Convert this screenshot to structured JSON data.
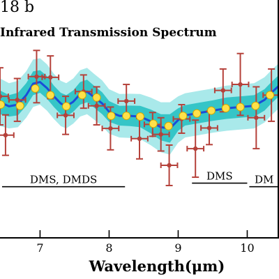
{
  "chart_data": {
    "type": "scatter",
    "title": "18 b",
    "subtitle": "Infrared Transmission Spectrum",
    "xlabel": "Wavelength(μm)",
    "ylabel": "",
    "xlim": [
      6.42,
      10.46
    ],
    "ylim": [
      0.0,
      1.0
    ],
    "xticks": [
      7,
      8,
      9,
      10
    ],
    "xtick_labels": [
      "7",
      "8",
      "9",
      "10"
    ],
    "grid": false,
    "legend": "none",
    "colors": {
      "observed": "#b5413a",
      "model": "#ffe14a",
      "model_edge": "#d0a800",
      "median_line": "#1a4dd8",
      "band_inner": "#35c5c7",
      "band_outer": "#a9e9ea"
    },
    "observed": [
      {
        "x": 6.42,
        "xerr": 0.12,
        "y": 0.595,
        "yerr": 0.12
      },
      {
        "x": 6.5,
        "xerr": 0.12,
        "y": 0.432,
        "yerr": 0.085
      },
      {
        "x": 6.67,
        "xerr": 0.12,
        "y": 0.58,
        "yerr": 0.09
      },
      {
        "x": 6.95,
        "xerr": 0.12,
        "y": 0.678,
        "yerr": 0.11
      },
      {
        "x": 7.15,
        "xerr": 0.12,
        "y": 0.675,
        "yerr": 0.09
      },
      {
        "x": 7.37,
        "xerr": 0.12,
        "y": 0.515,
        "yerr": 0.08
      },
      {
        "x": 7.63,
        "xerr": 0.12,
        "y": 0.615,
        "yerr": 0.07
      },
      {
        "x": 7.82,
        "xerr": 0.12,
        "y": 0.555,
        "yerr": 0.08
      },
      {
        "x": 8.02,
        "xerr": 0.12,
        "y": 0.46,
        "yerr": 0.09
      },
      {
        "x": 8.25,
        "xerr": 0.12,
        "y": 0.575,
        "yerr": 0.07
      },
      {
        "x": 8.44,
        "xerr": 0.12,
        "y": 0.417,
        "yerr": 0.085
      },
      {
        "x": 8.63,
        "xerr": 0.12,
        "y": 0.477,
        "yerr": 0.05
      },
      {
        "x": 8.75,
        "xerr": 0.12,
        "y": 0.435,
        "yerr": 0.07
      },
      {
        "x": 8.87,
        "xerr": 0.12,
        "y": 0.305,
        "yerr": 0.085
      },
      {
        "x": 9.05,
        "xerr": 0.12,
        "y": 0.5,
        "yerr": 0.06
      },
      {
        "x": 9.25,
        "xerr": 0.12,
        "y": 0.375,
        "yerr": 0.12
      },
      {
        "x": 9.45,
        "xerr": 0.12,
        "y": 0.462,
        "yerr": 0.07
      },
      {
        "x": 9.65,
        "xerr": 0.12,
        "y": 0.62,
        "yerr": 0.09
      },
      {
        "x": 9.9,
        "xerr": 0.12,
        "y": 0.645,
        "yerr": 0.13
      },
      {
        "x": 10.13,
        "xerr": 0.12,
        "y": 0.505,
        "yerr": 0.13
      },
      {
        "x": 10.35,
        "xerr": 0.12,
        "y": 0.6,
        "yerr": 0.11
      }
    ],
    "model": [
      {
        "x": 6.43,
        "y": 0.56
      },
      {
        "x": 6.71,
        "y": 0.555
      },
      {
        "x": 6.93,
        "y": 0.628
      },
      {
        "x": 7.15,
        "y": 0.6
      },
      {
        "x": 7.38,
        "y": 0.553
      },
      {
        "x": 7.61,
        "y": 0.6
      },
      {
        "x": 7.82,
        "y": 0.59
      },
      {
        "x": 8.03,
        "y": 0.513
      },
      {
        "x": 8.25,
        "y": 0.513
      },
      {
        "x": 8.45,
        "y": 0.51
      },
      {
        "x": 8.64,
        "y": 0.48
      },
      {
        "x": 8.86,
        "y": 0.47
      },
      {
        "x": 9.07,
        "y": 0.513
      },
      {
        "x": 9.27,
        "y": 0.523
      },
      {
        "x": 9.48,
        "y": 0.535
      },
      {
        "x": 9.69,
        "y": 0.545
      },
      {
        "x": 9.9,
        "y": 0.55
      },
      {
        "x": 10.12,
        "y": 0.555
      },
      {
        "x": 10.33,
        "y": 0.6
      }
    ],
    "median_line": [
      [
        6.42,
        0.57
      ],
      [
        6.55,
        0.553
      ],
      [
        6.68,
        0.56
      ],
      [
        6.8,
        0.6
      ],
      [
        6.9,
        0.648
      ],
      [
        7.0,
        0.655
      ],
      [
        7.1,
        0.63
      ],
      [
        7.2,
        0.595
      ],
      [
        7.3,
        0.565
      ],
      [
        7.38,
        0.553
      ],
      [
        7.48,
        0.572
      ],
      [
        7.58,
        0.605
      ],
      [
        7.68,
        0.615
      ],
      [
        7.78,
        0.592
      ],
      [
        7.9,
        0.565
      ],
      [
        8.0,
        0.53
      ],
      [
        8.15,
        0.513
      ],
      [
        8.3,
        0.513
      ],
      [
        8.45,
        0.51
      ],
      [
        8.6,
        0.49
      ],
      [
        8.75,
        0.465
      ],
      [
        8.88,
        0.46
      ],
      [
        9.0,
        0.495
      ],
      [
        9.1,
        0.515
      ],
      [
        9.3,
        0.525
      ],
      [
        9.5,
        0.535
      ],
      [
        9.7,
        0.545
      ],
      [
        9.9,
        0.55
      ],
      [
        10.1,
        0.555
      ],
      [
        10.25,
        0.58
      ],
      [
        10.35,
        0.61
      ],
      [
        10.46,
        0.64
      ]
    ],
    "band_inner": [
      [
        6.42,
        0.52,
        0.62
      ],
      [
        6.55,
        0.51,
        0.6
      ],
      [
        6.68,
        0.515,
        0.61
      ],
      [
        6.8,
        0.555,
        0.65
      ],
      [
        6.9,
        0.6,
        0.7
      ],
      [
        7.0,
        0.61,
        0.705
      ],
      [
        7.1,
        0.585,
        0.68
      ],
      [
        7.2,
        0.55,
        0.64
      ],
      [
        7.3,
        0.52,
        0.61
      ],
      [
        7.38,
        0.51,
        0.6
      ],
      [
        7.48,
        0.53,
        0.62
      ],
      [
        7.58,
        0.56,
        0.655
      ],
      [
        7.68,
        0.57,
        0.665
      ],
      [
        7.78,
        0.548,
        0.64
      ],
      [
        7.9,
        0.52,
        0.612
      ],
      [
        8.0,
        0.488,
        0.575
      ],
      [
        8.15,
        0.472,
        0.555
      ],
      [
        8.3,
        0.47,
        0.556
      ],
      [
        8.45,
        0.465,
        0.555
      ],
      [
        8.6,
        0.44,
        0.54
      ],
      [
        8.75,
        0.41,
        0.52
      ],
      [
        8.88,
        0.4,
        0.52
      ],
      [
        9.0,
        0.45,
        0.545
      ],
      [
        9.1,
        0.472,
        0.558
      ],
      [
        9.3,
        0.482,
        0.568
      ],
      [
        9.5,
        0.492,
        0.578
      ],
      [
        9.7,
        0.5,
        0.59
      ],
      [
        9.9,
        0.505,
        0.595
      ],
      [
        10.1,
        0.51,
        0.6
      ],
      [
        10.25,
        0.535,
        0.625
      ],
      [
        10.35,
        0.565,
        0.655
      ],
      [
        10.46,
        0.595,
        0.685
      ]
    ],
    "band_outer": [
      [
        6.42,
        0.47,
        0.67
      ],
      [
        6.55,
        0.46,
        0.65
      ],
      [
        6.68,
        0.465,
        0.66
      ],
      [
        6.8,
        0.505,
        0.7
      ],
      [
        6.9,
        0.55,
        0.75
      ],
      [
        7.0,
        0.56,
        0.755
      ],
      [
        7.1,
        0.535,
        0.73
      ],
      [
        7.2,
        0.5,
        0.69
      ],
      [
        7.3,
        0.47,
        0.66
      ],
      [
        7.38,
        0.46,
        0.65
      ],
      [
        7.48,
        0.48,
        0.67
      ],
      [
        7.58,
        0.51,
        0.705
      ],
      [
        7.68,
        0.52,
        0.715
      ],
      [
        7.78,
        0.498,
        0.69
      ],
      [
        7.9,
        0.47,
        0.662
      ],
      [
        8.0,
        0.438,
        0.625
      ],
      [
        8.15,
        0.422,
        0.605
      ],
      [
        8.3,
        0.42,
        0.606
      ],
      [
        8.45,
        0.415,
        0.605
      ],
      [
        8.6,
        0.39,
        0.59
      ],
      [
        8.75,
        0.36,
        0.57
      ],
      [
        8.88,
        0.35,
        0.57
      ],
      [
        9.0,
        0.4,
        0.595
      ],
      [
        9.1,
        0.422,
        0.608
      ],
      [
        9.3,
        0.432,
        0.618
      ],
      [
        9.5,
        0.442,
        0.628
      ],
      [
        9.7,
        0.45,
        0.64
      ],
      [
        9.9,
        0.455,
        0.645
      ],
      [
        10.1,
        0.46,
        0.65
      ],
      [
        10.25,
        0.485,
        0.675
      ],
      [
        10.35,
        0.515,
        0.705
      ],
      [
        10.46,
        0.545,
        0.735
      ]
    ],
    "annotations": [
      {
        "text": "DMS, DMDS",
        "x_start": 6.45,
        "x_end": 8.23,
        "y": 0.215
      },
      {
        "text": "DMS",
        "x_start": 9.2,
        "x_end": 10.0,
        "y": 0.23
      },
      {
        "text": "DM",
        "x_start": 10.03,
        "x_end": 10.46,
        "y": 0.215
      }
    ]
  }
}
